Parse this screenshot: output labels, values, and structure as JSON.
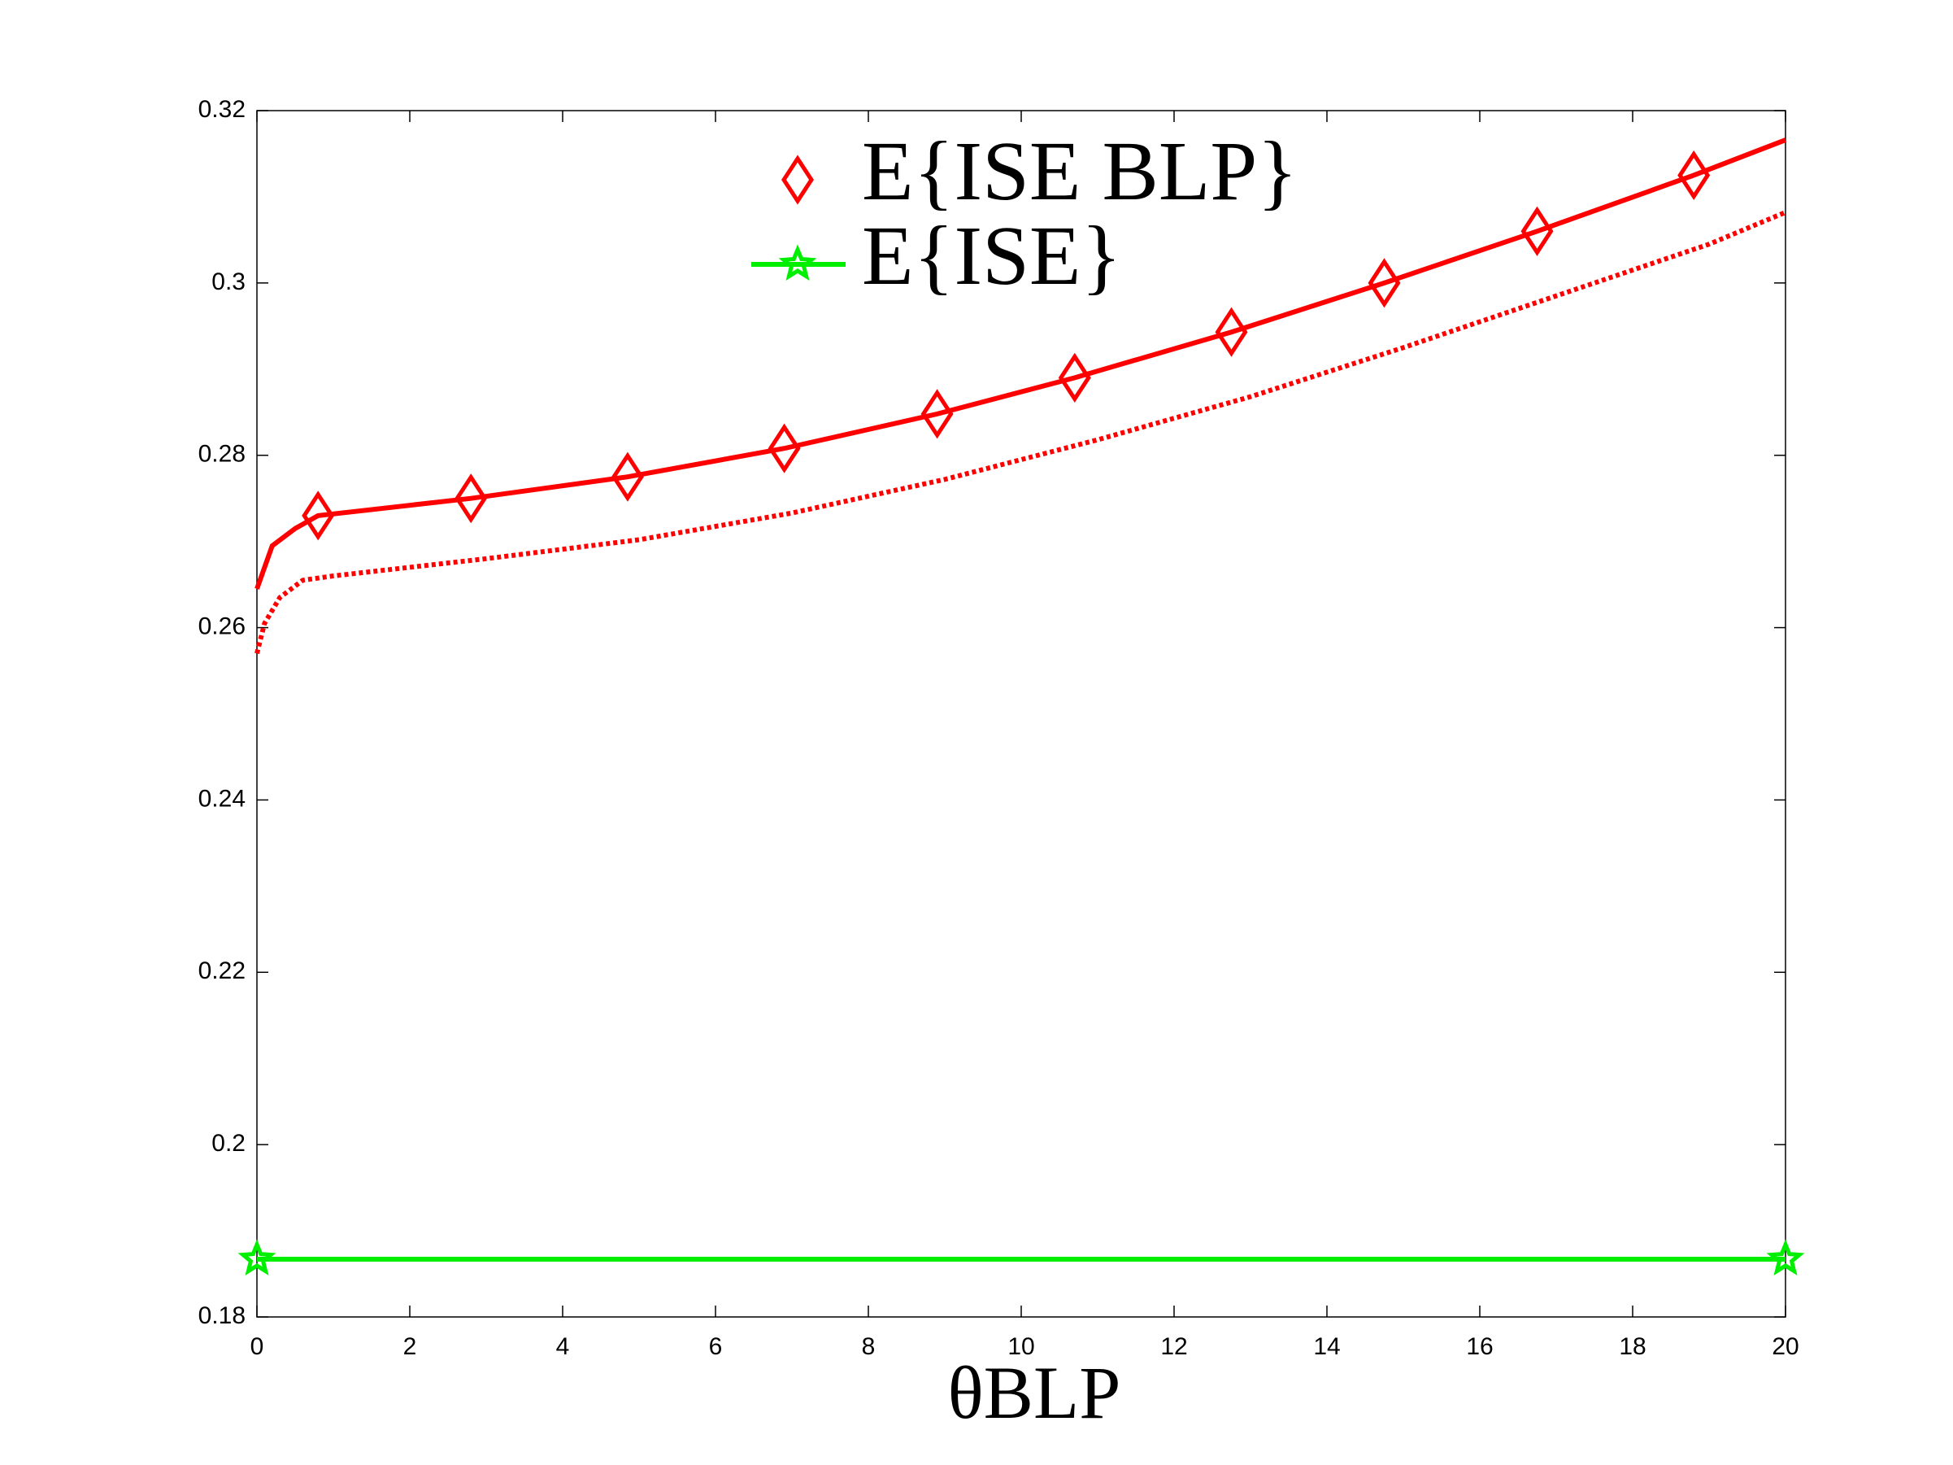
{
  "chart_data": {
    "type": "line",
    "x_label": "θBLP",
    "xlim": [
      0,
      20
    ],
    "xticks": [
      0,
      2,
      4,
      6,
      8,
      10,
      12,
      14,
      16,
      18,
      20
    ],
    "ylim": [
      0.18,
      0.32
    ],
    "yticks": [
      0.18,
      0.2,
      0.22,
      0.24,
      0.26,
      0.28,
      0.3,
      0.32
    ],
    "legend": "upper center",
    "series": [
      {
        "name": "E{ISE BLP}",
        "color": "#ff0000",
        "line_style": "solid",
        "marker": "diamond",
        "x": [
          0,
          0.2,
          0.5,
          0.8,
          2.8,
          4.85,
          6.9,
          8.9,
          10.7,
          12.75,
          14.75,
          16.75,
          18.8,
          20
        ],
        "values": [
          0.2645,
          0.2695,
          0.2715,
          0.273,
          0.275,
          0.2775,
          0.2808,
          0.2848,
          0.289,
          0.2943,
          0.3,
          0.306,
          0.3125,
          0.3166
        ],
        "markers": {
          "x": [
            0.8,
            2.8,
            4.85,
            6.9,
            8.9,
            10.7,
            12.75,
            14.75,
            16.75,
            18.8
          ],
          "values": [
            0.273,
            0.275,
            0.2775,
            0.2808,
            0.2848,
            0.289,
            0.2943,
            0.3,
            0.306,
            0.3125
          ]
        }
      },
      {
        "color": "#ff0000",
        "line_style": "dotted",
        "x": [
          0,
          0.1,
          0.3,
          0.6,
          1,
          3,
          5,
          7,
          9,
          11,
          13,
          15,
          17,
          19,
          20
        ],
        "values": [
          0.257,
          0.2605,
          0.2635,
          0.2655,
          0.266,
          0.268,
          0.2702,
          0.2733,
          0.2772,
          0.2818,
          0.2868,
          0.2925,
          0.2985,
          0.3045,
          0.3082
        ]
      },
      {
        "name": "E{ISE}",
        "color": "#00ee00",
        "line_style": "solid",
        "marker": "star",
        "x": [
          0,
          20
        ],
        "values": [
          0.1867,
          0.1867
        ]
      }
    ]
  }
}
